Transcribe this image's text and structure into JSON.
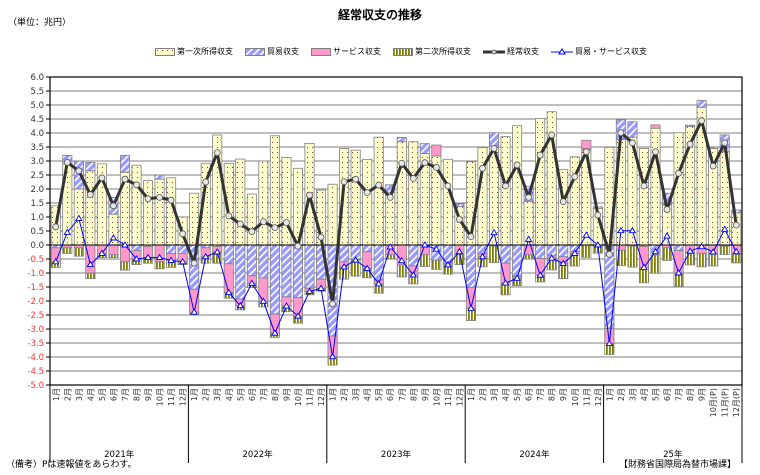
{
  "chart_data": {
    "type": "bar",
    "title": "経常収支の推移",
    "unit_label": "（単位：兆円）",
    "ylim": [
      -5.0,
      6.0
    ],
    "ytick_step": 0.5,
    "grid": true,
    "legend_position": "top",
    "years": [
      "2021年",
      "2022年",
      "2023年",
      "2024年",
      "25年"
    ],
    "months": [
      [
        "1月",
        "2月",
        "3月",
        "4月",
        "5月",
        "6月",
        "7月",
        "8月",
        "9月",
        "10月",
        "11月",
        "12月"
      ],
      [
        "1月",
        "2月",
        "3月",
        "4月",
        "5月",
        "6月",
        "7月",
        "8月",
        "9月",
        "10月",
        "11月",
        "12月"
      ],
      [
        "1月",
        "2月",
        "3月",
        "4月",
        "5月",
        "6月",
        "7月",
        "8月",
        "9月",
        "10月",
        "11月",
        "12月"
      ],
      [
        "1月",
        "2月",
        "3月",
        "4月",
        "5月",
        "6月",
        "7月",
        "8月",
        "9月",
        "10月",
        "11月",
        "12月"
      ],
      [
        "1月",
        "2月",
        "3月",
        "4月",
        "5月",
        "6月",
        "7月",
        "8月",
        "9月",
        "10月(P)",
        "11月(P)",
        "12月(P)"
      ]
    ],
    "series": [
      {
        "name": "第一次所得収支",
        "kind": "stacked-bar",
        "color": "#FFFFCC",
        "values": [
          1.4,
          2.9,
          2.0,
          2.65,
          2.9,
          1.1,
          2.6,
          2.85,
          2.3,
          2.35,
          2.4,
          1.0,
          1.85,
          2.92,
          3.93,
          2.92,
          3.07,
          1.82,
          3.0,
          3.9,
          3.13,
          2.74,
          3.63,
          1.96,
          2.17,
          3.45,
          3.39,
          3.06,
          3.85,
          1.87,
          3.69,
          3.69,
          3.27,
          3.18,
          3.06,
          1.37,
          2.98,
          3.48,
          3.54,
          3.87,
          4.26,
          1.55,
          4.52,
          4.76,
          2.7,
          3.15,
          3.39,
          1.31,
          3.49,
          3.77,
          3.85,
          3.45,
          4.17,
          1.43,
          4.01,
          4.23,
          4.92,
          3.45,
          3.33,
          1.15
        ]
      },
      {
        "name": "貿易収支",
        "kind": "stacked-bar",
        "color": "#9999FF",
        "values": [
          -0.1,
          0.3,
          1.0,
          0.3,
          0,
          0.6,
          0.6,
          -0.2,
          -0.05,
          0.15,
          -0.3,
          -0.3,
          -1.58,
          -0.1,
          -0.05,
          -0.67,
          -1.93,
          -1.1,
          -1.18,
          -2.47,
          -1.85,
          -1.88,
          -1.54,
          -1.22,
          -3.25,
          -0.6,
          -0.51,
          -0.24,
          -1.25,
          0.28,
          0.15,
          -0.75,
          0.35,
          -0.54,
          -0.65,
          0.1,
          -1.51,
          -0.32,
          0.47,
          -0.65,
          -1.13,
          0.55,
          -0.48,
          -0.39,
          -0.42,
          -0.24,
          0.05,
          0.05,
          -2.98,
          0.7,
          0.55,
          -0.05,
          -0.36,
          0.42,
          -0.2,
          0.05,
          0.24,
          0.05,
          0.6,
          0.1
        ]
      },
      {
        "name": "サービス収支",
        "kind": "stacked-bar",
        "color": "#FF99CC",
        "values": [
          -0.5,
          -0.1,
          -0.1,
          -1.0,
          -0.3,
          -0.35,
          -0.6,
          -0.3,
          -0.4,
          -0.6,
          -0.25,
          -0.3,
          -0.82,
          -0.32,
          -0.2,
          -1.03,
          -0.24,
          -0.27,
          -0.83,
          -0.68,
          -0.33,
          -0.66,
          -0.12,
          -0.33,
          -0.74,
          -0.18,
          -0.03,
          -0.6,
          -0.14,
          -0.35,
          -0.71,
          -0.32,
          -0.35,
          0.39,
          -0.06,
          -0.34,
          -0.75,
          -0.1,
          -0.03,
          -0.71,
          -0.06,
          -0.35,
          -0.6,
          -0.08,
          -0.24,
          -0.06,
          0.3,
          -0.05,
          -0.54,
          -0.19,
          -0.04,
          -0.75,
          0.12,
          -0.1,
          -0.8,
          -0.27,
          -0.3,
          -0.3,
          -0.04,
          -0.34
        ]
      },
      {
        "name": "第二次所得収支",
        "kind": "stacked-bar",
        "color": "#808000",
        "values": [
          -0.2,
          -0.2,
          -0.3,
          -0.2,
          -0.15,
          -0.1,
          -0.3,
          -0.2,
          -0.2,
          -0.25,
          -0.25,
          -0.1,
          -0.1,
          -0.23,
          -0.4,
          -0.2,
          -0.15,
          -0.15,
          -0.2,
          -0.15,
          -0.2,
          -0.25,
          -0.12,
          -0.1,
          -0.3,
          -0.44,
          -0.57,
          -0.33,
          -0.33,
          -0.15,
          -0.43,
          -0.32,
          -0.42,
          -0.33,
          -0.33,
          -0.36,
          -0.44,
          -0.36,
          -0.6,
          -0.42,
          -0.26,
          -0.15,
          -0.24,
          -0.42,
          -0.54,
          -0.45,
          -0.44,
          -0.24,
          -0.39,
          -0.54,
          -0.75,
          -0.55,
          -0.65,
          -0.45,
          -0.48,
          -0.44,
          -0.48,
          -0.45,
          -0.3,
          -0.3
        ]
      },
      {
        "name": "経常収支",
        "kind": "line",
        "color": "#333333",
        "values": [
          0.65,
          2.95,
          2.65,
          1.8,
          2.4,
          1.4,
          2.35,
          2.15,
          1.65,
          1.7,
          1.6,
          0.4,
          -0.65,
          2.25,
          3.3,
          1.04,
          0.75,
          0.48,
          0.83,
          0.62,
          0.8,
          -0.04,
          1.78,
          0.28,
          -2.1,
          2.26,
          2.35,
          1.87,
          2.14,
          1.7,
          2.92,
          2.38,
          2.94,
          2.77,
          2.11,
          0.92,
          0.3,
          2.74,
          3.45,
          2.11,
          2.86,
          1.7,
          3.21,
          3.93,
          1.55,
          2.44,
          3.33,
          1.07,
          -0.33,
          4.01,
          3.65,
          2.11,
          3.33,
          1.27,
          2.56,
          3.6,
          4.44,
          2.82,
          3.65,
          0.71
        ]
      },
      {
        "name": "貿易・サービス収支",
        "kind": "line",
        "color": "#0000FF",
        "values": [
          -0.6,
          0.45,
          0.95,
          -0.7,
          -0.3,
          0.25,
          0.0,
          -0.5,
          -0.45,
          -0.45,
          -0.55,
          -0.6,
          -2.4,
          -0.42,
          -0.25,
          -1.7,
          -2.17,
          -1.37,
          -2.01,
          -3.15,
          -2.18,
          -2.54,
          -1.66,
          -1.55,
          -3.99,
          -0.78,
          -0.54,
          -0.84,
          -1.39,
          -0.07,
          -0.56,
          -1.07,
          0.0,
          -0.15,
          -0.71,
          -0.24,
          -2.26,
          -0.42,
          0.44,
          -1.36,
          -1.19,
          0.2,
          -1.08,
          -0.47,
          -0.66,
          -0.3,
          0.35,
          0.0,
          -3.52,
          0.51,
          0.51,
          -0.8,
          -0.24,
          0.32,
          -1.0,
          -0.22,
          -0.06,
          -0.25,
          0.56,
          -0.24
        ]
      }
    ],
    "negative_tick_color": "#FF3333"
  },
  "footer": {
    "note": "（備考）Pは速報値をあらわす。",
    "source": "【財務省国際局為替市場課】"
  }
}
